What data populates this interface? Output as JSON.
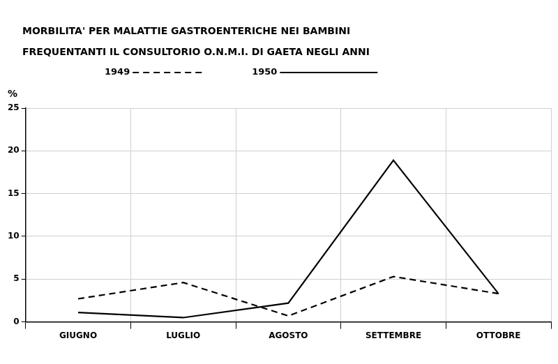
{
  "chart_data": {
    "type": "line",
    "title": [
      "MORBILITA' PER MALATTIE GASTROENTERICHE NEI BAMBINI",
      "FREQUENTANTI IL CONSULTORIO O.N.M.I. DI GAETA NEGLI ANNI"
    ],
    "ylabel": "%",
    "categories": [
      "GIUGNO",
      "LUGLIO",
      "AGOSTO",
      "SETTEMBRE",
      "OTTOBRE"
    ],
    "series": [
      {
        "name": "1949",
        "color": "#000000",
        "line_style": "dashed",
        "values": [
          2.7,
          4.6,
          0.7,
          5.3,
          3.3
        ]
      },
      {
        "name": "1950",
        "color": "#000000",
        "line_style": "solid",
        "values": [
          1.1,
          0.5,
          2.2,
          18.9,
          3.3
        ]
      }
    ],
    "ylim": [
      0,
      25
    ],
    "yticks": [
      0,
      5,
      10,
      15,
      20,
      25
    ],
    "grid": true,
    "legend": "top"
  }
}
